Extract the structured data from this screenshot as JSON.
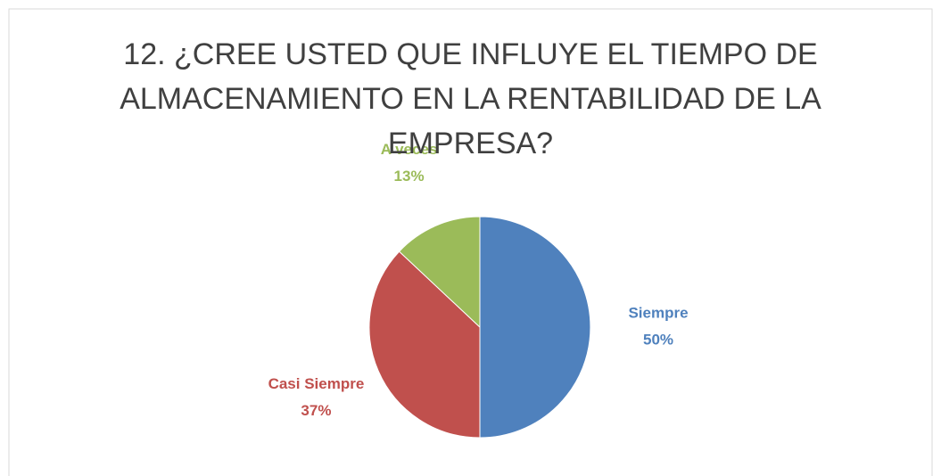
{
  "chart_data": {
    "type": "pie",
    "title": "12. ¿CREE USTED QUE INFLUYE EL TIEMPO DE ALMACENAMIENTO EN LA RENTABILIDAD DE LA EMPRESA?",
    "categories": [
      "Siempre",
      "Casi Siempre",
      "A veces"
    ],
    "values": [
      50,
      37,
      13
    ],
    "value_labels": [
      "50%",
      "37%",
      "13%"
    ],
    "colors": [
      "#4f81bd",
      "#c0504d",
      "#9bbb59"
    ]
  }
}
